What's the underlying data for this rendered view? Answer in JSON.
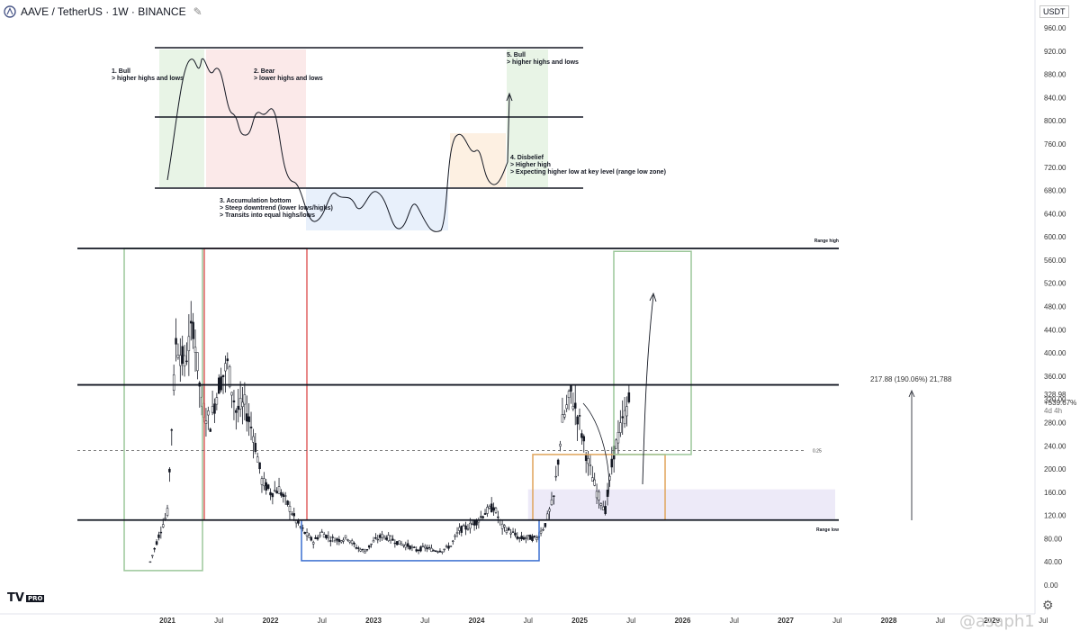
{
  "header": {
    "title": "AAVE / TetherUS · 1W · BINANCE",
    "icon": "aave-logo-icon"
  },
  "price_axis": {
    "currency": "USDT",
    "ticks": [
      "960.00",
      "920.00",
      "880.00",
      "840.00",
      "800.00",
      "760.00",
      "720.00",
      "680.00",
      "640.00",
      "600.00",
      "560.00",
      "520.00",
      "480.00",
      "440.00",
      "400.00",
      "360.00",
      "320.00",
      "280.00",
      "240.00",
      "200.00",
      "160.00",
      "120.00",
      "80.00",
      "40.00",
      "0.00"
    ],
    "last_price": "328.98",
    "last_change": "+539.67%",
    "countdown": "4d 4h"
  },
  "time_axis": {
    "ticks": [
      "2021",
      "Jul",
      "2022",
      "Jul",
      "2023",
      "Jul",
      "2024",
      "Jul",
      "2025",
      "Jul",
      "2026",
      "Jul",
      "2027",
      "Jul",
      "2028",
      "Jul",
      "2029",
      "Jul"
    ]
  },
  "levels": {
    "range_high_label": "Range high",
    "range_low_label": "Range low",
    "fib_label": "0.25"
  },
  "measure": {
    "text": "217.88 (190.06%) 21,788"
  },
  "schematic_notes": [
    {
      "title": "1. Bull",
      "line": "> higher highs and lows"
    },
    {
      "title": "2. Bear",
      "line": "> lower highs and lows"
    },
    {
      "title": "3. Accumulation bottom",
      "line": "> Steep downtrend (lower lows/highs)\n> Transits into equal highs/lows"
    },
    {
      "title": "4. Disbelief",
      "line": "> Higher high\n> Expecting higher low at key level (range low zone)"
    },
    {
      "title": "5. Bull",
      "line": "> higher highs and lows"
    }
  ],
  "logo": {
    "text": "TV",
    "badge": "PRO"
  },
  "watermark": "@asaph1",
  "colors": {
    "bull": "#9cc79a",
    "bear": "#e06060",
    "accumulation": "#3a6fd0",
    "disbelief": "#e0a45a",
    "zone": "#ebe8f7"
  },
  "chart_data": {
    "type": "candlestick",
    "title": "",
    "xlabel": "",
    "ylabel": "",
    "ylim": [
      0,
      960
    ],
    "x_range": [
      "2020-10",
      "2029-08"
    ],
    "range_high": 580,
    "mid_level": 345,
    "range_low": 112,
    "fib_0_25": 232,
    "series": [
      {
        "name": "",
        "x": [
          "2020-11",
          "2020-12",
          "2021-01",
          "2021-02",
          "2021-03",
          "2021-04",
          "2021-05",
          "2021-06",
          "2021-07",
          "2021-08",
          "2021-09",
          "2021-10",
          "2021-11",
          "2021-12",
          "2022-01",
          "2022-02",
          "2022-03",
          "2022-04",
          "2022-05",
          "2022-06",
          "2022-07",
          "2022-08",
          "2022-09",
          "2022-10",
          "2022-11",
          "2022-12",
          "2023-01",
          "2023-02",
          "2023-03",
          "2023-04",
          "2023-05",
          "2023-06",
          "2023-07",
          "2023-08",
          "2023-09",
          "2023-10",
          "2023-11",
          "2023-12",
          "2024-01",
          "2024-02",
          "2024-03",
          "2024-04",
          "2024-05",
          "2024-06",
          "2024-07",
          "2024-08",
          "2024-09",
          "2024-10",
          "2024-11",
          "2024-12",
          "2025-01",
          "2025-02",
          "2025-03",
          "2025-04",
          "2025-05",
          "2025-06",
          "2025-07"
        ],
        "close": [
          40,
          85,
          125,
          420,
          380,
          450,
          310,
          280,
          345,
          380,
          300,
          310,
          260,
          180,
          160,
          165,
          140,
          110,
          90,
          75,
          90,
          80,
          78,
          82,
          65,
          58,
          75,
          85,
          80,
          72,
          68,
          60,
          65,
          60,
          60,
          68,
          95,
          100,
          110,
          125,
          135,
          100,
          92,
          80,
          82,
          80,
          105,
          150,
          280,
          330,
          280,
          210,
          160,
          130,
          230,
          280,
          329
        ]
      }
    ]
  }
}
